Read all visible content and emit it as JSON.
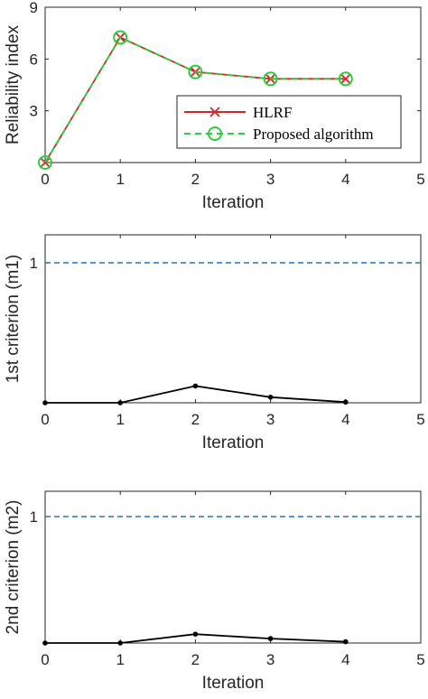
{
  "chart_data": [
    {
      "type": "line",
      "xlabel": "Iteration",
      "ylabel": "Reliability index",
      "xlim": [
        0,
        5
      ],
      "ylim": [
        0,
        9
      ],
      "xticks": [
        0,
        1,
        2,
        3,
        4,
        5
      ],
      "yticks": [
        3,
        6,
        9
      ],
      "legend_position": "lower-right",
      "series": [
        {
          "name": "HLRF",
          "x": [
            0,
            1,
            2,
            3,
            4
          ],
          "values": [
            0,
            7.25,
            5.25,
            4.85,
            4.85
          ],
          "color": "#d62728",
          "style": "solid",
          "marker": "x"
        },
        {
          "name": "Proposed algorithm",
          "x": [
            0,
            1,
            2,
            3,
            4
          ],
          "values": [
            0,
            7.25,
            5.25,
            4.85,
            4.85
          ],
          "color": "#2ecc40",
          "style": "dashed",
          "marker": "circle"
        }
      ]
    },
    {
      "type": "line",
      "xlabel": "Iteration",
      "ylabel": "1st criterion (m1)",
      "xlim": [
        0,
        5
      ],
      "ylim": [
        0,
        1.2
      ],
      "xticks": [
        0,
        1,
        2,
        3,
        4,
        5
      ],
      "yticks": [
        1
      ],
      "threshold": {
        "value": 1,
        "color": "#1f77b4",
        "style": "dashed"
      },
      "series": [
        {
          "x": [
            0,
            1,
            2,
            3,
            4
          ],
          "values": [
            0,
            0,
            0.12,
            0.04,
            0.005
          ],
          "color": "#000000",
          "style": "solid",
          "marker": "dot"
        }
      ]
    },
    {
      "type": "line",
      "xlabel": "Iteration",
      "ylabel": "2nd criterion (m2)",
      "xlim": [
        0,
        5
      ],
      "ylim": [
        0,
        1.2
      ],
      "xticks": [
        0,
        1,
        2,
        3,
        4,
        5
      ],
      "yticks": [
        1
      ],
      "threshold": {
        "value": 1,
        "color": "#1f77b4",
        "style": "dashed"
      },
      "series": [
        {
          "x": [
            0,
            1,
            2,
            3,
            4
          ],
          "values": [
            0,
            0,
            0.07,
            0.035,
            0.01
          ],
          "color": "#000000",
          "style": "solid",
          "marker": "dot"
        }
      ]
    }
  ]
}
